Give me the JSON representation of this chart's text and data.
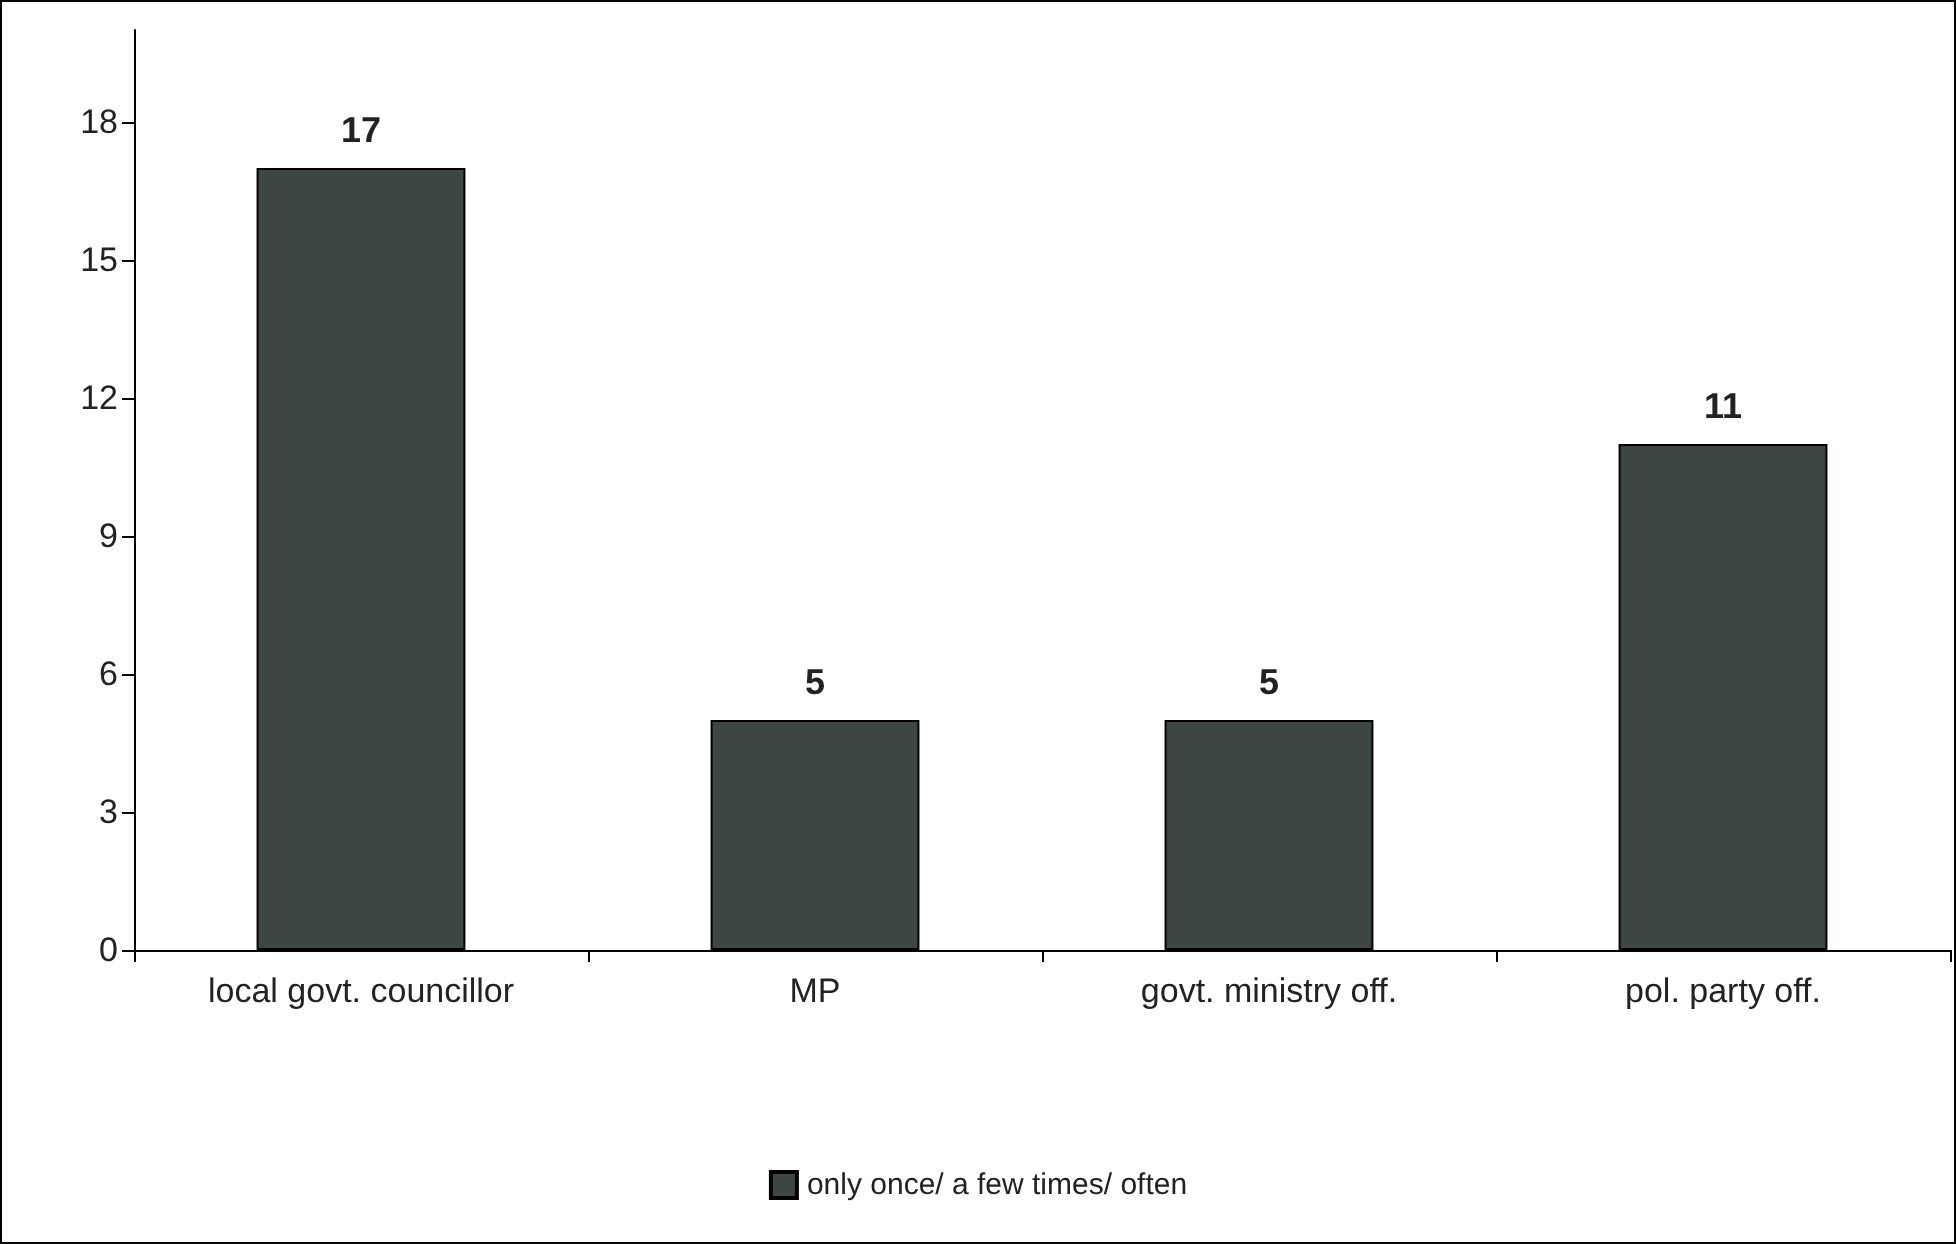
{
  "chart_data": {
    "type": "bar",
    "categories": [
      "local govt. councillor",
      "MP",
      "govt. ministry off.",
      "pol. party off."
    ],
    "series": [
      {
        "name": "only once/ a few times/ often",
        "color": "#3d4644",
        "values": [
          17,
          5,
          5,
          11
        ]
      }
    ],
    "ylim": [
      0,
      20
    ],
    "yticks": [
      0,
      3,
      6,
      9,
      12,
      15,
      18
    ],
    "data_labels": true,
    "grid": false,
    "legend": "bottom"
  }
}
